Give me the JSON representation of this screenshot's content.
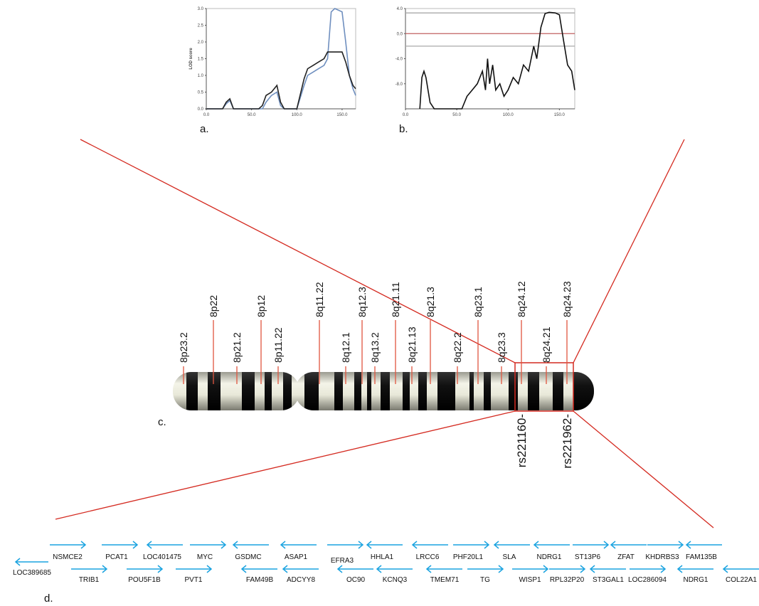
{
  "chart_data": [
    {
      "type": "line",
      "ylabel": "LOD score",
      "xlim": [
        0,
        165
      ],
      "ylim": [
        0,
        3
      ],
      "xticks": [
        {
          "value": 0,
          "label": "0.0"
        },
        {
          "value": 50,
          "label": "50.0"
        },
        {
          "value": 100,
          "label": "100.0"
        },
        {
          "value": 150,
          "label": "150.0"
        }
      ],
      "yticks": [
        {
          "value": 0,
          "label": "0.0"
        },
        {
          "value": 0.5,
          "label": "0.5"
        },
        {
          "value": 1,
          "label": "1.0"
        },
        {
          "value": 1.5,
          "label": "1.5"
        },
        {
          "value": 2,
          "label": "2.0"
        },
        {
          "value": 2.5,
          "label": "2.5"
        },
        {
          "value": 3,
          "label": "3.0"
        }
      ],
      "x": [
        0,
        18,
        22,
        26,
        30,
        58,
        62,
        66,
        72,
        78,
        82,
        86,
        100,
        108,
        112,
        118,
        124,
        130,
        134,
        138,
        142,
        150,
        154,
        158,
        162,
        165
      ],
      "series": [
        {
          "color": "#6f8fbf",
          "values": [
            0,
            0,
            0.15,
            0.25,
            0,
            0,
            0,
            0.2,
            0.4,
            0.5,
            0.1,
            0,
            0,
            0.7,
            1.0,
            1.1,
            1.2,
            1.3,
            1.5,
            2.9,
            3.0,
            2.9,
            2.0,
            1.0,
            0.6,
            0.4
          ]
        },
        {
          "color": "#222222",
          "values": [
            0,
            0,
            0.2,
            0.3,
            0,
            0,
            0.1,
            0.4,
            0.5,
            0.7,
            0.2,
            0,
            0,
            0.9,
            1.2,
            1.3,
            1.4,
            1.5,
            1.7,
            1.7,
            1.7,
            1.7,
            1.4,
            1.0,
            0.7,
            0.6
          ]
        }
      ]
    },
    {
      "type": "line",
      "xlim": [
        0,
        165
      ],
      "ylim": [
        -12,
        4
      ],
      "xticks": [
        {
          "value": 0,
          "label": "0.0"
        },
        {
          "value": 50,
          "label": "50.0"
        },
        {
          "value": 100,
          "label": "100.0"
        },
        {
          "value": 150,
          "label": "150.0"
        }
      ],
      "yticks": [
        {
          "value": 4,
          "label": "4.0"
        },
        {
          "value": 0,
          "label": "0.0"
        },
        {
          "value": -4,
          "label": "-4.0"
        },
        {
          "value": -8,
          "label": "-8.0"
        }
      ],
      "hlines": [
        {
          "value": 3.3,
          "color": "#aaaaaa"
        },
        {
          "value": 0,
          "color": "#c06060"
        },
        {
          "value": -2,
          "color": "#aaaaaa"
        }
      ],
      "x": [
        14,
        16,
        18,
        20,
        24,
        28,
        55,
        60,
        65,
        70,
        75,
        78,
        80,
        82,
        85,
        88,
        92,
        96,
        100,
        105,
        110,
        115,
        120,
        125,
        128,
        132,
        136,
        140,
        146,
        150,
        154,
        158,
        162,
        165
      ],
      "series": [
        {
          "color": "#111111",
          "values": [
            -12,
            -7,
            -6,
            -7,
            -11,
            -12,
            -12,
            -10,
            -9,
            -8,
            -6,
            -9,
            -4,
            -8,
            -5,
            -9,
            -8,
            -10,
            -9,
            -7,
            -8,
            -5,
            -6,
            -2,
            -4,
            1,
            3.2,
            3.4,
            3.3,
            3,
            -1,
            -5,
            -6,
            -9
          ]
        }
      ]
    }
  ],
  "panel_labels": [
    "a.",
    "b.",
    "c.",
    "d."
  ],
  "chromosome": {
    "bands": [
      "8p23.2",
      "8p22",
      "8p21.2",
      "8p12",
      "8p11.22",
      "8q11.22",
      "8q12.1",
      "8q12.3",
      "8q13.2",
      "8q21.11",
      "8q21.13",
      "8q21.3",
      "8q22.2",
      "8q23.1",
      "8q23.3",
      "8q24.12",
      "8q24.21",
      "8q24.23"
    ],
    "markers": [
      "rs221160-",
      "rs221962-"
    ]
  },
  "genes": {
    "top": [
      {
        "label": "NSMCE2",
        "direction": "right"
      },
      {
        "label": "PCAT1",
        "direction": "right"
      },
      {
        "label": "LOC401475",
        "direction": "left"
      },
      {
        "label": "MYC",
        "direction": "right"
      },
      {
        "label": "GSDMC",
        "direction": "left"
      },
      {
        "label": "ASAP1",
        "direction": "left"
      },
      {
        "label": "EFRA3",
        "direction": "right"
      },
      {
        "label": "HHLA1",
        "direction": "left"
      },
      {
        "label": "LRCC6",
        "direction": "left"
      },
      {
        "label": "PHF20L1",
        "direction": "right"
      },
      {
        "label": "SLA",
        "direction": "left"
      },
      {
        "label": "NDRG1",
        "direction": "left"
      },
      {
        "label": "ST13P6",
        "direction": "right"
      },
      {
        "label": "ZFAT",
        "direction": "left"
      },
      {
        "label": "KHDRBS3",
        "direction": "right"
      },
      {
        "label": "FAM135B",
        "direction": "left"
      }
    ],
    "bottom": [
      {
        "label": "LOC389685",
        "direction": "left"
      },
      {
        "label": "TRIB1",
        "direction": "right"
      },
      {
        "label": "POU5F1B",
        "direction": "right"
      },
      {
        "label": "PVT1",
        "direction": "right"
      },
      {
        "label": "FAM49B",
        "direction": "left"
      },
      {
        "label": "ADCYY8",
        "direction": "left"
      },
      {
        "label": "OC90",
        "direction": "left"
      },
      {
        "label": "KCNQ3",
        "direction": "left"
      },
      {
        "label": "TMEM71",
        "direction": "left"
      },
      {
        "label": "TG",
        "direction": "right"
      },
      {
        "label": "WISP1",
        "direction": "right"
      },
      {
        "label": "RPL32P20",
        "direction": "right"
      },
      {
        "label": "ST3GAL1",
        "direction": "left"
      },
      {
        "label": "LOC286094",
        "direction": "right"
      },
      {
        "label": "NDRG1",
        "direction": "left"
      },
      {
        "label": "COL22A1",
        "direction": "left"
      }
    ]
  }
}
